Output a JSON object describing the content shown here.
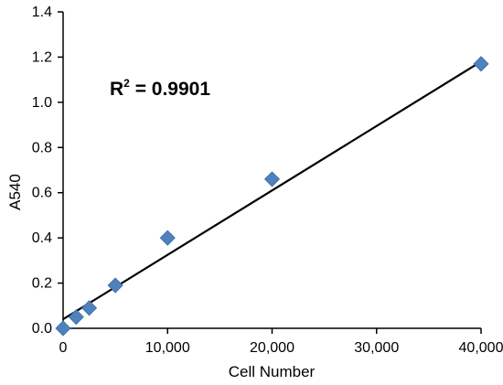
{
  "chart_data": {
    "type": "scatter",
    "xlabel": "Cell Number",
    "ylabel": "A540",
    "xlim": [
      0,
      40000
    ],
    "ylim": [
      0,
      1.4
    ],
    "x_ticks": [
      0,
      10000,
      20000,
      30000,
      40000
    ],
    "x_tick_labels": [
      "0",
      "10,000",
      "20,000",
      "30,000",
      "40,000"
    ],
    "y_ticks": [
      0,
      0.2,
      0.4,
      0.6,
      0.8,
      1.0,
      1.2,
      1.4
    ],
    "y_tick_labels": [
      "0.0",
      "0.2",
      "0.4",
      "0.6",
      "0.8",
      "1.0",
      "1.2",
      "1.4"
    ],
    "grid": false,
    "legend": "none",
    "series": [
      {
        "x": [
          0,
          1250,
          2500,
          5000,
          10000,
          20000,
          40000
        ],
        "y": [
          0.0,
          0.05,
          0.09,
          0.19,
          0.4,
          0.66,
          1.17
        ],
        "marker": "diamond",
        "color": "#4f81bd"
      }
    ],
    "trendline": {
      "x": [
        0,
        40000
      ],
      "y": [
        0.04,
        1.18
      ],
      "color": "#000000"
    },
    "annotation": {
      "r_label": "R",
      "r_sup": "2",
      "r_value": " = 0.9901"
    }
  }
}
